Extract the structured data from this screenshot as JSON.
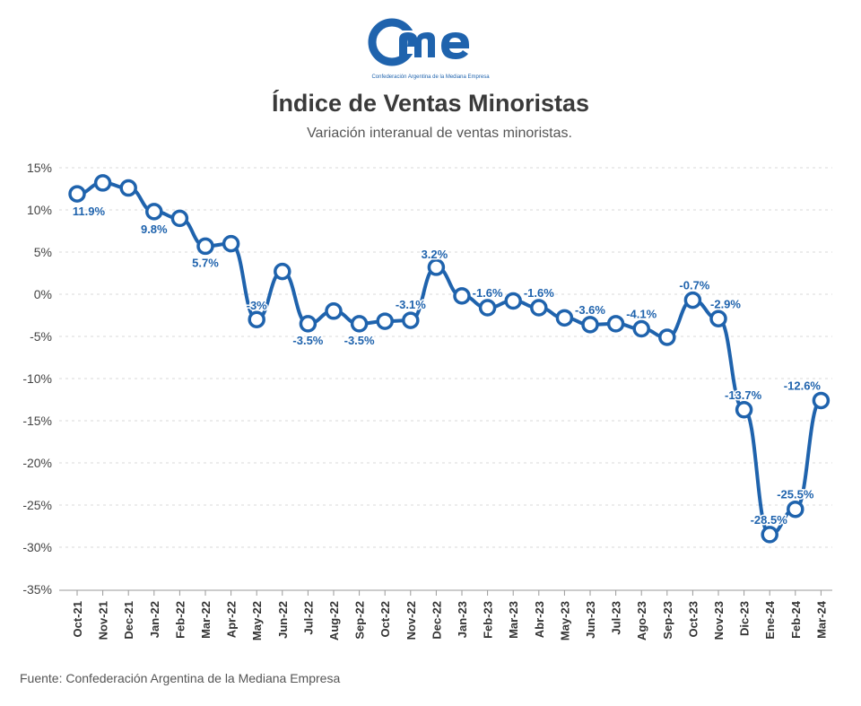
{
  "logo": {
    "brand": "came",
    "tagline": "Confederación Argentina de la Mediana Empresa",
    "color": "#1f63ad"
  },
  "title": "Índice de Ventas Minoristas",
  "subtitle": "Variación interanual de ventas minoristas.",
  "source": "Fuente: Confederación Argentina de la Mediana Empresa",
  "chart_data": {
    "type": "line",
    "title": "Índice de Ventas Minoristas",
    "subtitle": "Variación interanual de ventas minoristas.",
    "xlabel": "",
    "ylabel": "",
    "ylim": [
      -35,
      15
    ],
    "yticks": [
      15,
      10,
      5,
      0,
      -5,
      -10,
      -15,
      -20,
      -25,
      -30,
      -35
    ],
    "ytick_labels": [
      "15%",
      "10%",
      "5%",
      "0%",
      "-5%",
      "-10%",
      "-15%",
      "-20%",
      "-25%",
      "-30%",
      "-35%"
    ],
    "grid": "horizontal-dashed",
    "line_color": "#1f63ad",
    "categories": [
      "Oct-21",
      "Nov-21",
      "Dec-21",
      "Jan-22",
      "Feb-22",
      "Mar-22",
      "Apr-22",
      "May-22",
      "Jun-22",
      "Jul-22",
      "Aug-22",
      "Sep-22",
      "Oct-22",
      "Nov-22",
      "Dec-22",
      "Jan-23",
      "Feb-23",
      "Mar-23",
      "Abr-23",
      "May-23",
      "Jun-23",
      "Jul-23",
      "Ago-23",
      "Sep-23",
      "Oct-23",
      "Nov-23",
      "Dic-23",
      "Ene-24",
      "Feb-24",
      "Mar-24"
    ],
    "values": [
      11.9,
      13.2,
      12.6,
      9.8,
      9.0,
      5.7,
      6.0,
      -3.0,
      2.7,
      -3.5,
      -2.0,
      -3.5,
      -3.2,
      -3.1,
      3.2,
      -0.2,
      -1.6,
      -0.8,
      -1.6,
      -2.8,
      -3.6,
      -3.5,
      -4.1,
      -5.1,
      -0.7,
      -2.9,
      -13.7,
      -28.5,
      -25.5,
      -12.6
    ],
    "data_labels": [
      {
        "index": 0,
        "text": "11.9%"
      },
      {
        "index": 3,
        "text": "9.8%"
      },
      {
        "index": 5,
        "text": "5.7%"
      },
      {
        "index": 7,
        "text": "-3%"
      },
      {
        "index": 9,
        "text": "-3.5%"
      },
      {
        "index": 11,
        "text": "-3.5%"
      },
      {
        "index": 13,
        "text": "-3.1%"
      },
      {
        "index": 14,
        "text": "3.2%"
      },
      {
        "index": 16,
        "text": "-1.6%"
      },
      {
        "index": 18,
        "text": "-1.6%"
      },
      {
        "index": 20,
        "text": "-3.6%"
      },
      {
        "index": 22,
        "text": "-4.1%"
      },
      {
        "index": 24,
        "text": "-0.7%"
      },
      {
        "index": 25,
        "text": "-2.9%"
      },
      {
        "index": 26,
        "text": "-13.7%"
      },
      {
        "index": 27,
        "text": "-28.5%"
      },
      {
        "index": 28,
        "text": "-25.5%"
      },
      {
        "index": 29,
        "text": "-12.6%"
      }
    ]
  }
}
